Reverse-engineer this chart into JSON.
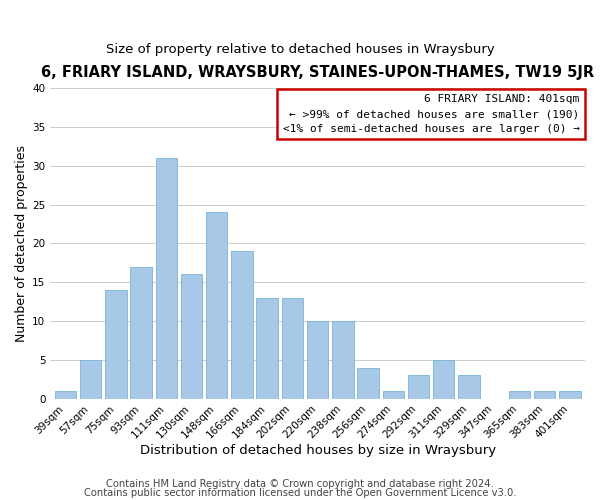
{
  "title": "6, FRIARY ISLAND, WRAYSBURY, STAINES-UPON-THAMES, TW19 5JR",
  "subtitle": "Size of property relative to detached houses in Wraysbury",
  "xlabel": "Distribution of detached houses by size in Wraysbury",
  "ylabel": "Number of detached properties",
  "bar_color": "#a8c8e8",
  "bar_edge_color": "#7ab4d4",
  "bins": [
    "39sqm",
    "57sqm",
    "75sqm",
    "93sqm",
    "111sqm",
    "130sqm",
    "148sqm",
    "166sqm",
    "184sqm",
    "202sqm",
    "220sqm",
    "238sqm",
    "256sqm",
    "274sqm",
    "292sqm",
    "311sqm",
    "329sqm",
    "347sqm",
    "365sqm",
    "383sqm",
    "401sqm"
  ],
  "values": [
    1,
    5,
    14,
    17,
    31,
    16,
    24,
    19,
    13,
    13,
    10,
    10,
    4,
    1,
    3,
    5,
    3,
    0,
    1,
    1,
    1
  ],
  "ylim": [
    0,
    40
  ],
  "yticks": [
    0,
    5,
    10,
    15,
    20,
    25,
    30,
    35,
    40
  ],
  "legend_title": "6 FRIARY ISLAND: 401sqm",
  "legend_line1": "← >99% of detached houses are smaller (190)",
  "legend_line2": "<1% of semi-detached houses are larger (0) →",
  "legend_box_color": "#ffffff",
  "legend_box_edge_color": "#cc0000",
  "footer1": "Contains HM Land Registry data © Crown copyright and database right 2024.",
  "footer2": "Contains public sector information licensed under the Open Government Licence v3.0.",
  "grid_color": "#cccccc",
  "background_color": "#ffffff",
  "title_fontsize": 10.5,
  "subtitle_fontsize": 9.5,
  "xlabel_fontsize": 9.5,
  "ylabel_fontsize": 9,
  "tick_fontsize": 7.5,
  "footer_fontsize": 7.2
}
